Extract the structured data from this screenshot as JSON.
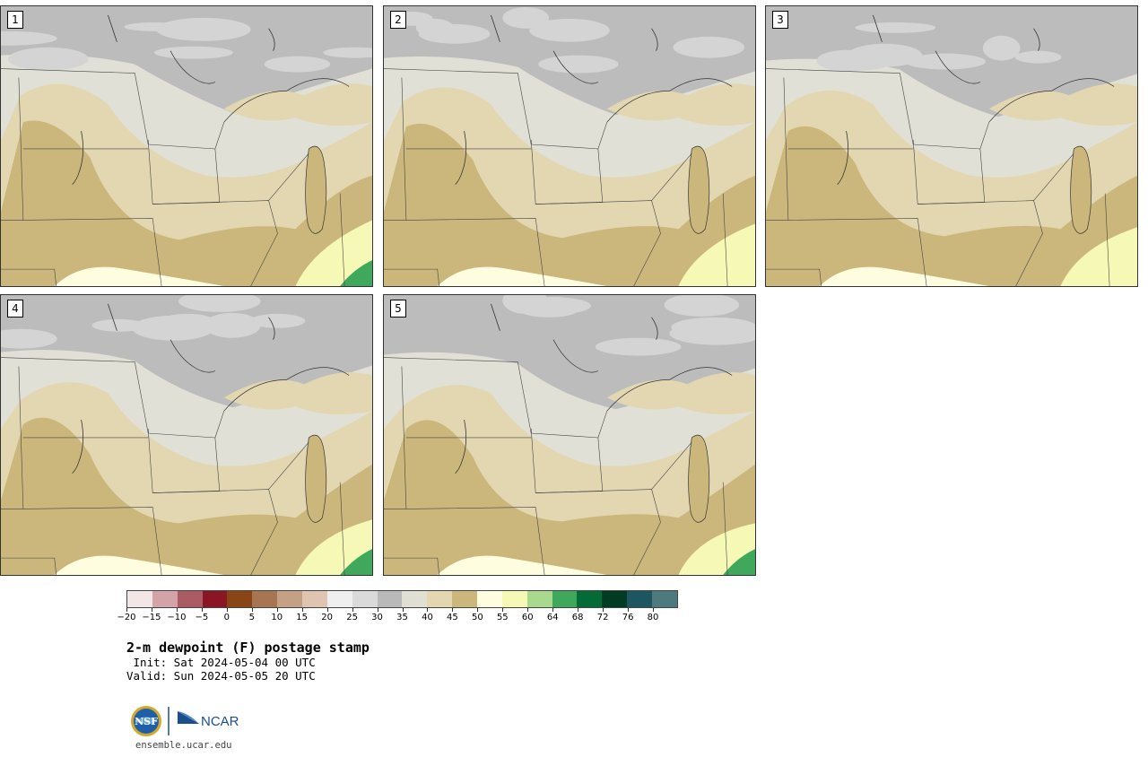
{
  "title": "2-m dewpoint (F) postage stamp",
  "init_text": " Init: Sat 2024-05-04 00 UTC",
  "valid_text": "Valid: Sun 2024-05-05 20 UTC",
  "website": "ensemble.ucar.edu",
  "logos": {
    "nsf": "NSF",
    "ncar": "NCAR"
  },
  "panels": [
    {
      "label": "1",
      "variant": 0
    },
    {
      "label": "2",
      "variant": 1
    },
    {
      "label": "3",
      "variant": 2
    },
    {
      "label": "4",
      "variant": 3
    },
    {
      "label": "5",
      "variant": 4
    }
  ],
  "colorbar": {
    "colors": [
      "#f3e6e6",
      "#d4a3a7",
      "#ab5b63",
      "#8a1623",
      "#8a4516",
      "#a87552",
      "#c5a084",
      "#e0c4b2",
      "#efefef",
      "#dadada",
      "#b9b9b9",
      "#dfdfd3",
      "#e3d7b2",
      "#cbb77b",
      "#fffde0",
      "#f5f9b5",
      "#a8d98c",
      "#3fa85a",
      "#046b37",
      "#003b23",
      "#1c5661",
      "#4d7a7d"
    ],
    "tick_labels": [
      "−20",
      "−15",
      "−10",
      "−5",
      "0",
      "5",
      "10",
      "15",
      "20",
      "25",
      "30",
      "35",
      "40",
      "45",
      "50",
      "55",
      "60",
      "64",
      "68",
      "72",
      "76",
      "80"
    ]
  }
}
